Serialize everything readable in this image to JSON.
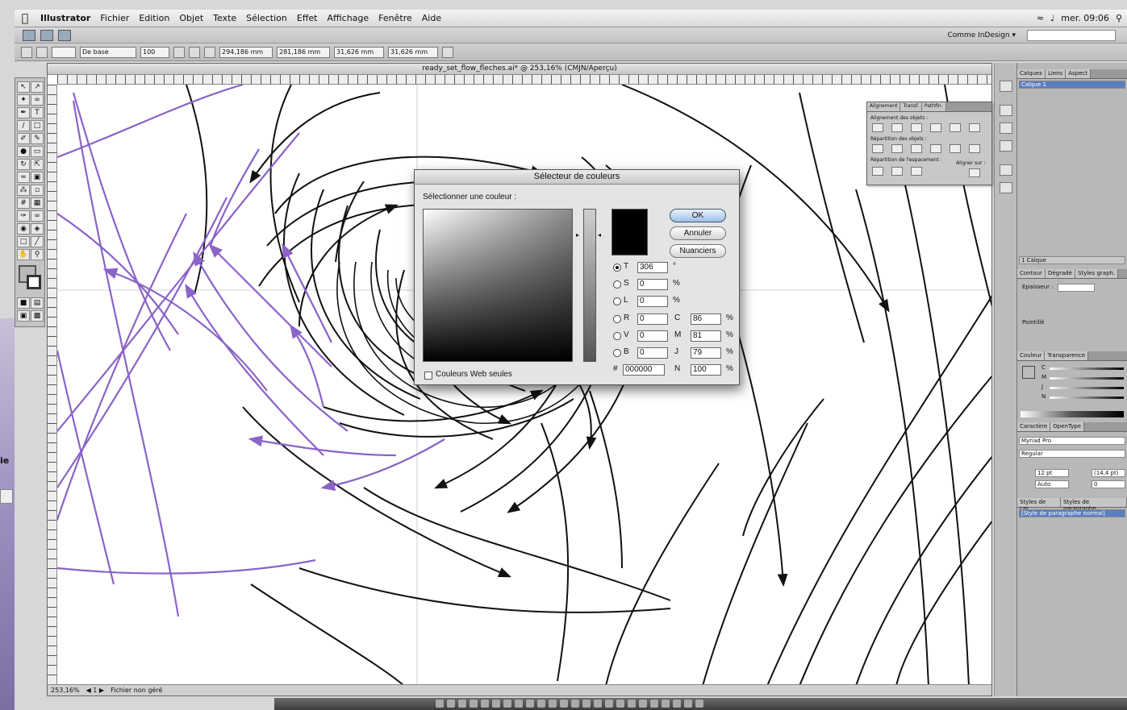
{
  "menubar": {
    "app": "Illustrator",
    "items": [
      "Fichier",
      "Edition",
      "Objet",
      "Texte",
      "Sélection",
      "Effet",
      "Affichage",
      "Fenêtre",
      "Aide"
    ],
    "clock": "mer. 09:06"
  },
  "appbar": {
    "workspace": "Comme InDesign ▾"
  },
  "control_bar": {
    "stroke_style": "De base",
    "opacity": "100",
    "fields": [
      "294,186 mm",
      "281,186 mm",
      "31,626 mm",
      "31,626 mm"
    ]
  },
  "document": {
    "title": "ready_set_flow_fleches.ai* @ 253,16% (CMJN/Aperçu)",
    "zoom": "253,16%",
    "status_label": "Fichier non géré"
  },
  "desktop": {
    "truncated_label": "ie"
  },
  "panels": {
    "layers": {
      "tabs": [
        "Calques",
        "Liens",
        "Aspect"
      ],
      "layer_name": "Calque 1",
      "footer": "1 Calque"
    },
    "stroke": {
      "tabs": [
        "Contour",
        "Dégradé",
        "Styles graph."
      ],
      "weight_label": "Epaisseur :",
      "dashed_label": "Pointillé"
    },
    "color": {
      "tabs": [
        "Couleur",
        "Transparence"
      ],
      "channels": [
        "C",
        "M",
        "J",
        "N"
      ]
    },
    "character": {
      "tabs": [
        "Caractère",
        "OpenType"
      ],
      "font": "Myriad Pro",
      "style": "Regular",
      "size": "12 pt",
      "leading": "(14,4 pt)",
      "tracking": "Auto",
      "kerning": "0"
    },
    "paragraph_styles": {
      "tabs": [
        "Styles de car.",
        "Styles de paragraphe"
      ],
      "default_style": "[Style de paragraphe normal]"
    },
    "align": {
      "tabs": [
        "Alignement",
        "Transf.",
        "Pathfin."
      ],
      "section_align": "Alignement des objets :",
      "section_distribute": "Répartition des objets :",
      "section_spacing": "Répartition de l'espacement :",
      "align_to": "Aligner sur :"
    }
  },
  "color_picker": {
    "title": "Sélecteur de couleurs",
    "prompt": "Sélectionner une couleur :",
    "ok": "OK",
    "cancel": "Annuler",
    "swatches": "Nuanciers",
    "hsb": [
      {
        "key": "T",
        "value": "306",
        "unit": "°",
        "selected": true
      },
      {
        "key": "S",
        "value": "0",
        "unit": "%",
        "selected": false
      },
      {
        "key": "L",
        "value": "0",
        "unit": "%",
        "selected": false
      }
    ],
    "rgb": [
      {
        "key": "R",
        "value": "0"
      },
      {
        "key": "V",
        "value": "0"
      },
      {
        "key": "B",
        "value": "0"
      }
    ],
    "cmyk": [
      {
        "key": "C",
        "value": "86",
        "unit": "%"
      },
      {
        "key": "M",
        "value": "81",
        "unit": "%"
      },
      {
        "key": "J",
        "value": "79",
        "unit": "%"
      },
      {
        "key": "N",
        "value": "100",
        "unit": "%"
      }
    ],
    "hex_label": "#",
    "hex": "000000",
    "web_only": "Couleurs Web seules",
    "current_color": "#000000"
  },
  "colors": {
    "stroke_black": "#111111",
    "stroke_purple": "#8a63c8",
    "ui_gray": "#c4c4c4"
  }
}
